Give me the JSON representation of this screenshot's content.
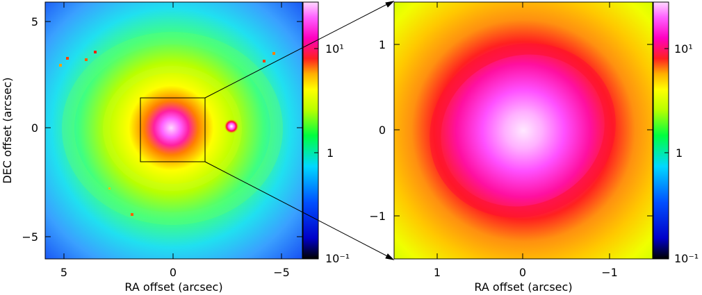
{
  "left_panel": {
    "xlabel": "RA offset (arcsec)",
    "ylabel": "DEC offset (arcsec)",
    "xticks": [
      "5",
      "0",
      "−5"
    ],
    "yticks": [
      "5",
      "0",
      "−5"
    ],
    "colorbar_ticks": [
      "10¹",
      "1",
      "10⁻¹"
    ]
  },
  "right_panel": {
    "xlabel": "RA offset (arcsec)",
    "xticks": [
      "1",
      "0",
      "−1"
    ],
    "yticks": [
      "1",
      "0",
      "−1"
    ],
    "colorbar_ticks": [
      "10¹",
      "1",
      "10⁻¹"
    ]
  },
  "colormap": [
    "#000000",
    "#0000c8",
    "#0050ff",
    "#00d8ff",
    "#00ff40",
    "#b8ff00",
    "#ffff00",
    "#ffb000",
    "#ff2020",
    "#ff00c0",
    "#ff60ff",
    "#ffd8ff"
  ]
}
